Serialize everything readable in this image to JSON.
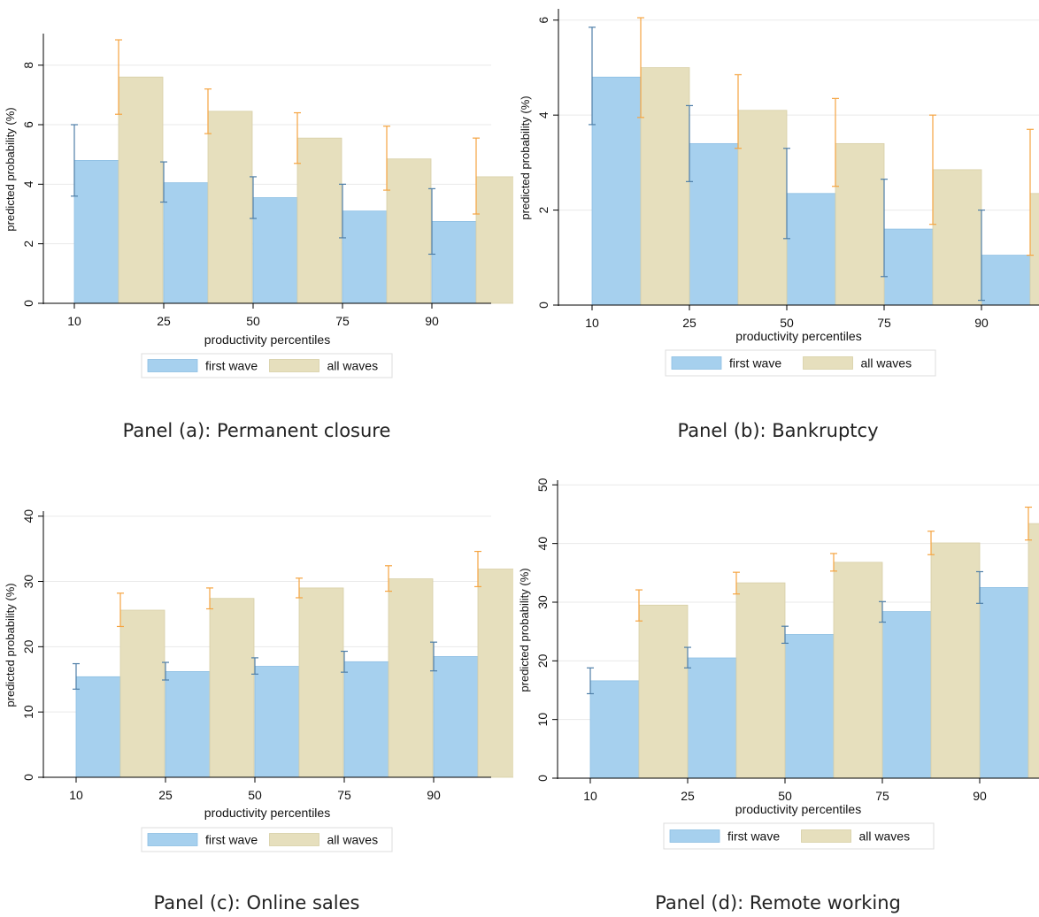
{
  "chart_data": [
    {
      "type": "bar",
      "caption": "Panel (a): Permanent closure",
      "categories": [
        "10",
        "25",
        "50",
        "75",
        "90"
      ],
      "xlabel": "productivity percentiles",
      "ylabel": "predicted probability (%)",
      "ylim": [
        0,
        9
      ],
      "yticks": [
        "0",
        "2",
        "4",
        "6",
        "8"
      ],
      "ytick_values": [
        0,
        2,
        4,
        6,
        8
      ],
      "grid": true,
      "legend_position": "bottom",
      "series": [
        {
          "name": "first wave",
          "color": "#a6d0ee",
          "err_color": "#4f7fa8",
          "values": [
            4.8,
            4.05,
            3.55,
            3.1,
            2.75
          ],
          "ci_low": [
            3.6,
            3.4,
            2.85,
            2.2,
            1.65
          ],
          "ci_high": [
            6.0,
            4.75,
            4.25,
            4.0,
            3.85
          ]
        },
        {
          "name": "all waves",
          "color": "#e6dfbd",
          "err_color": "#f5a441",
          "values": [
            7.6,
            6.45,
            5.55,
            4.85,
            4.25
          ],
          "ci_low": [
            6.35,
            5.7,
            4.7,
            3.8,
            3.0
          ],
          "ci_high": [
            8.85,
            7.2,
            6.4,
            5.95,
            5.55
          ]
        }
      ]
    },
    {
      "type": "bar",
      "caption": "Panel (b): Bankruptcy",
      "categories": [
        "10",
        "25",
        "50",
        "75",
        "90"
      ],
      "xlabel": "productivity percentiles",
      "ylabel": "predicted probability (%)",
      "ylim": [
        0,
        6.2
      ],
      "yticks": [
        "0",
        "2",
        "4",
        "6"
      ],
      "ytick_values": [
        0,
        2,
        4,
        6
      ],
      "grid": true,
      "legend_position": "bottom",
      "series": [
        {
          "name": "first wave",
          "color": "#a6d0ee",
          "err_color": "#4f7fa8",
          "values": [
            4.8,
            3.4,
            2.35,
            1.6,
            1.05
          ],
          "ci_low": [
            3.8,
            2.6,
            1.4,
            0.6,
            0.1
          ],
          "ci_high": [
            5.85,
            4.2,
            3.3,
            2.65,
            2.0
          ]
        },
        {
          "name": "all waves",
          "color": "#e6dfbd",
          "err_color": "#f5a441",
          "values": [
            5.0,
            4.1,
            3.4,
            2.85,
            2.35
          ],
          "ci_low": [
            3.95,
            3.3,
            2.5,
            1.7,
            1.05
          ],
          "ci_high": [
            6.05,
            4.85,
            4.35,
            4.0,
            3.7
          ]
        }
      ]
    },
    {
      "type": "bar",
      "caption": "Panel (c): Online sales",
      "categories": [
        "10",
        "25",
        "50",
        "75",
        "90"
      ],
      "xlabel": "productivity percentiles",
      "ylabel": "predicted probability (%)",
      "ylim": [
        0,
        40.5
      ],
      "yticks": [
        "0",
        "10",
        "20",
        "30",
        "40"
      ],
      "ytick_values": [
        0,
        10,
        20,
        30,
        40
      ],
      "grid": true,
      "legend_position": "bottom",
      "series": [
        {
          "name": "first wave",
          "color": "#a6d0ee",
          "err_color": "#4f7fa8",
          "values": [
            15.4,
            16.2,
            17.0,
            17.7,
            18.5
          ],
          "ci_low": [
            13.5,
            14.9,
            15.8,
            16.1,
            16.3
          ],
          "ci_high": [
            17.4,
            17.6,
            18.3,
            19.3,
            20.7
          ]
        },
        {
          "name": "all waves",
          "color": "#e6dfbd",
          "err_color": "#f5a441",
          "values": [
            25.6,
            27.4,
            29.0,
            30.4,
            31.9
          ],
          "ci_low": [
            23.1,
            25.8,
            27.5,
            28.5,
            29.2
          ],
          "ci_high": [
            28.2,
            29.0,
            30.5,
            32.4,
            34.6
          ]
        }
      ]
    },
    {
      "type": "bar",
      "caption": "Panel (d): Remote working",
      "categories": [
        "10",
        "25",
        "50",
        "75",
        "90"
      ],
      "xlabel": "productivity percentiles",
      "ylabel": "predicted probability (%)",
      "ylim": [
        0,
        50.5
      ],
      "yticks": [
        "0",
        "10",
        "20",
        "30",
        "40",
        "50"
      ],
      "ytick_values": [
        0,
        10,
        20,
        30,
        40,
        50
      ],
      "grid": true,
      "legend_position": "bottom",
      "series": [
        {
          "name": "first wave",
          "color": "#a6d0ee",
          "err_color": "#4f7fa8",
          "values": [
            16.6,
            20.5,
            24.5,
            28.4,
            32.5
          ],
          "ci_low": [
            14.4,
            18.8,
            23.0,
            26.6,
            29.8
          ],
          "ci_high": [
            18.8,
            22.3,
            25.9,
            30.1,
            35.2
          ]
        },
        {
          "name": "all waves",
          "color": "#e6dfbd",
          "err_color": "#f5a441",
          "values": [
            29.5,
            33.3,
            36.8,
            40.1,
            43.4
          ],
          "ci_low": [
            26.8,
            31.4,
            35.3,
            38.1,
            40.6
          ],
          "ci_high": [
            32.1,
            35.1,
            38.3,
            42.1,
            46.2
          ]
        }
      ]
    }
  ]
}
